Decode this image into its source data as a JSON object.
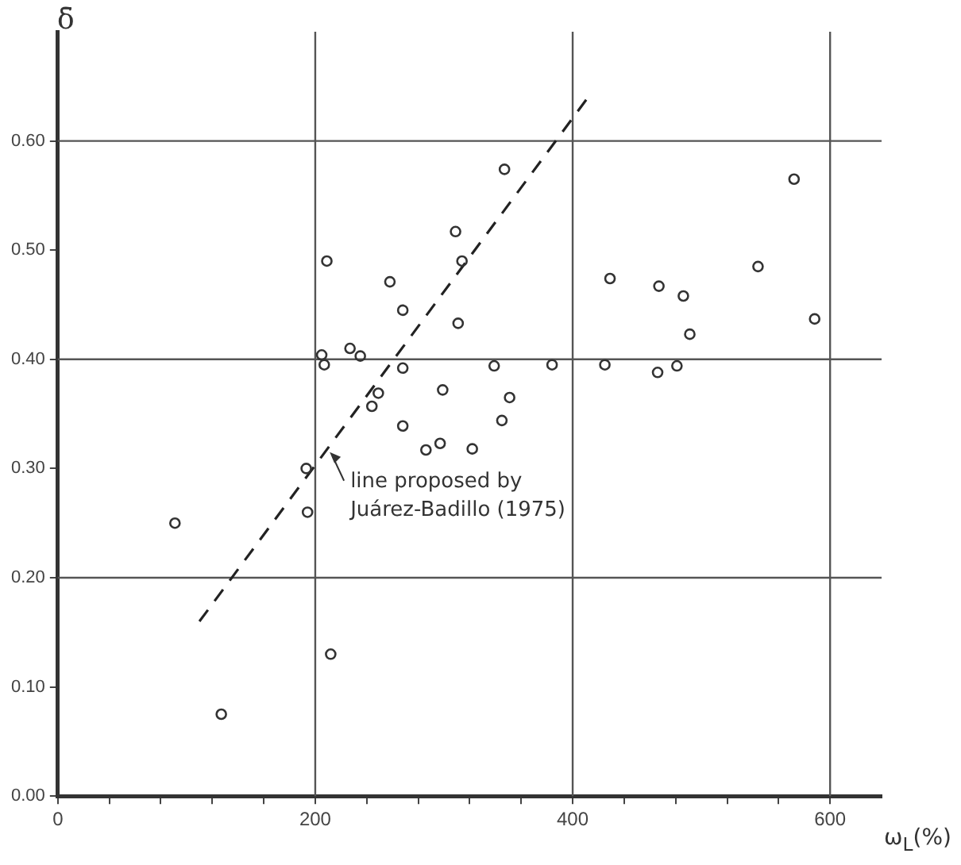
{
  "chart_data": {
    "type": "scatter",
    "xlabel": "ω$_{L}$(%)",
    "ylabel": "δ̄",
    "xlim": [
      0,
      640
    ],
    "ylim": [
      0,
      0.7
    ],
    "xticks": [
      0,
      {
        "value": 40,
        "label": null
      },
      {
        "value": 80,
        "label": null
      },
      {
        "value": 120,
        "label": null
      },
      {
        "value": 160,
        "label": null
      },
      200,
      {
        "value": 240,
        "label": null
      },
      {
        "value": 280,
        "label": null
      },
      {
        "value": 320,
        "label": null
      },
      {
        "value": 360,
        "label": null
      },
      400,
      {
        "value": 440,
        "label": null
      },
      {
        "value": 480,
        "label": null
      },
      {
        "value": 520,
        "label": null
      },
      {
        "value": 560,
        "label": null
      },
      600
    ],
    "yticks": [
      {
        "value": 0,
        "label": "0.00"
      },
      {
        "value": 0.1,
        "label": "0.10"
      },
      {
        "value": 0.2,
        "label": "0.20"
      },
      {
        "value": 0.3,
        "label": "0.30"
      },
      {
        "value": 0.4,
        "label": "0.40"
      },
      {
        "value": 0.5,
        "label": "0.50"
      },
      {
        "value": 0.6,
        "label": "0.60"
      }
    ],
    "grid": false,
    "legend": false,
    "ref_lines": [
      {
        "axis": "x",
        "value": 200,
        "color": "#555555"
      },
      {
        "axis": "x",
        "value": 400,
        "color": "#555555"
      },
      {
        "axis": "x",
        "value": 600,
        "color": "#555555"
      },
      {
        "axis": "y",
        "value": 0.2,
        "color": "#555555"
      },
      {
        "axis": "y",
        "value": 0.4,
        "color": "#555555"
      },
      {
        "axis": "y",
        "value": 0.6,
        "color": "#555555"
      }
    ],
    "annotations": [
      {
        "text": "line proposed by Juárez-Badillo (1975)",
        "x": 210,
        "y": 0.315
      }
    ],
    "series": [
      {
        "color": "#333333",
        "marker": "circle",
        "x": [
          91,
          194,
          193,
          212,
          127,
          286,
          297,
          322,
          244,
          309,
          209,
          258,
          268,
          311,
          314,
          205,
          207,
          227,
          235,
          268,
          249,
          299,
          268,
          339,
          347,
          384,
          351,
          345,
          425,
          466,
          481,
          429,
          467,
          486,
          491,
          544,
          572,
          588
        ],
        "values": [
          0.25,
          0.26,
          0.3,
          0.13,
          0.075,
          0.317,
          0.323,
          0.318,
          0.357,
          0.517,
          0.49,
          0.471,
          0.445,
          0.433,
          0.49,
          0.404,
          0.395,
          0.41,
          0.403,
          0.392,
          0.369,
          0.372,
          0.339,
          0.394,
          0.574,
          0.395,
          0.365,
          0.344,
          0.395,
          0.388,
          0.394,
          0.474,
          0.467,
          0.458,
          0.423,
          0.485,
          0.565,
          0.437
        ]
      },
      {
        "type": "line",
        "color": "#222222",
        "line_style": "dashed",
        "marker": "none",
        "x": [
          110,
          412
        ],
        "values": [
          0.16,
          0.64
        ]
      }
    ]
  }
}
